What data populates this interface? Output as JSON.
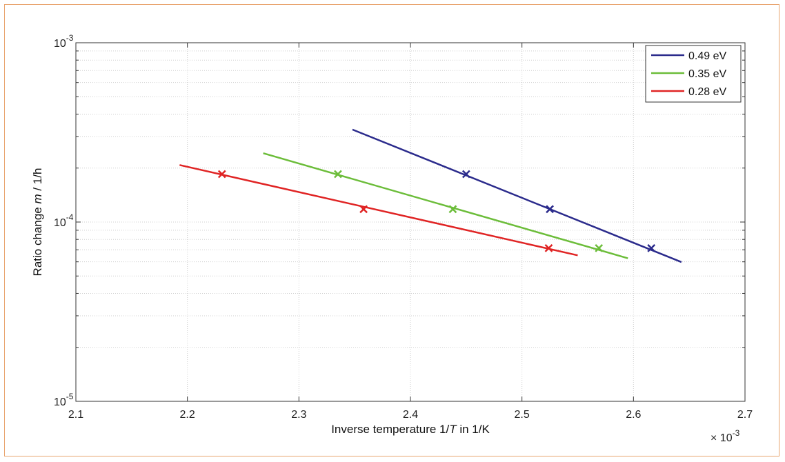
{
  "chart_data": {
    "type": "line",
    "title": "",
    "xlabel_parts": [
      "Inverse temperature 1/",
      "T",
      " in 1/K"
    ],
    "ylabel_parts": [
      "Ratio change  ",
      "m",
      " / 1/h"
    ],
    "x_multiplier": "× 10",
    "x_multiplier_exp": "-3",
    "xlim": [
      2.1,
      2.7
    ],
    "ylim": [
      1e-05,
      0.001
    ],
    "y_scale": "log",
    "x_ticks": [
      "2.1",
      "2.2",
      "2.3",
      "2.4",
      "2.5",
      "2.6",
      "2.7"
    ],
    "y_ticks": [
      {
        "base": "10",
        "exp": "-3",
        "value": 0.001
      },
      {
        "base": "10",
        "exp": "-4",
        "value": 0.0001
      },
      {
        "base": "10",
        "exp": "-5",
        "value": 1e-05
      }
    ],
    "grid": true,
    "legend_position": "top-right",
    "x_unit_scale": 0.001,
    "series": [
      {
        "name": "0.49 eV",
        "color": "#2b2b8c",
        "fit_line": {
          "x": [
            2.348,
            2.643
          ],
          "y": [
            0.000328,
            5.98e-05
          ]
        },
        "markers": {
          "x": [
            2.45,
            2.525,
            2.616
          ],
          "y": [
            0.000185,
            0.000118,
            7.15e-05
          ]
        }
      },
      {
        "name": "0.35 eV",
        "color": "#6cbd3a",
        "fit_line": {
          "x": [
            2.268,
            2.595
          ],
          "y": [
            0.000242,
            6.28e-05
          ]
        },
        "markers": {
          "x": [
            2.335,
            2.438,
            2.569
          ],
          "y": [
            0.000185,
            0.000118,
            7.15e-05
          ]
        }
      },
      {
        "name": "0.28 eV",
        "color": "#e02424",
        "fit_line": {
          "x": [
            2.193,
            2.55
          ],
          "y": [
            0.000208,
            6.52e-05
          ]
        },
        "markers": {
          "x": [
            2.231,
            2.358,
            2.524
          ],
          "y": [
            0.000185,
            0.000118,
            7.15e-05
          ]
        }
      }
    ]
  }
}
